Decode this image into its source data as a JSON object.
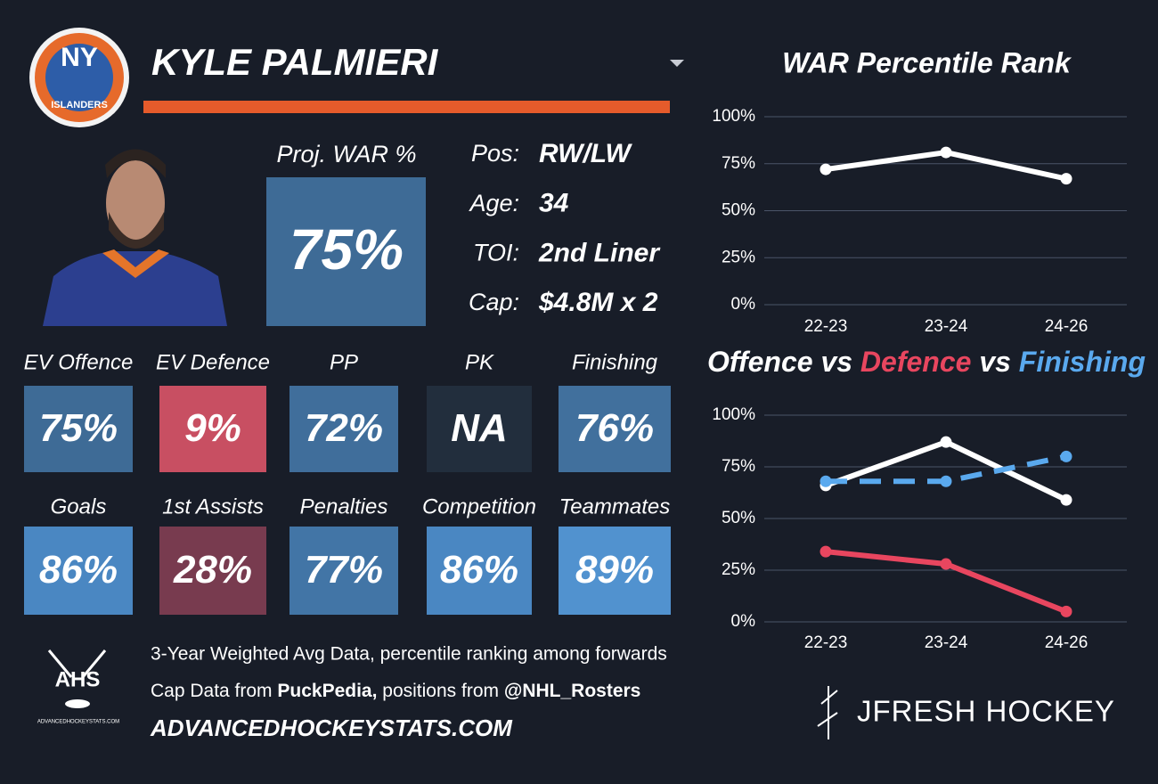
{
  "logo": {
    "top": "NY",
    "bottom": "ISLANDERS"
  },
  "player": {
    "name": "KYLE PALMIERI"
  },
  "proj_war": {
    "label": "Proj. WAR %",
    "value": "75%",
    "color": "#3e6b96"
  },
  "info": [
    {
      "label": "Pos:",
      "value": "RW/LW"
    },
    {
      "label": "Age:",
      "value": 34
    },
    {
      "label": "TOI:",
      "value": "2nd Liner"
    },
    {
      "label": "Cap:",
      "value": "$4.8M x 2"
    }
  ],
  "tiles": [
    [
      {
        "label": "EV Offence",
        "value": "75%",
        "color": "#3e6b96"
      },
      {
        "label": "EV Defence",
        "value": "9%",
        "color": "#c84f62"
      },
      {
        "label": "PP",
        "value": "72%",
        "color": "#406e9b"
      },
      {
        "label": "PK",
        "value": "NA",
        "color": "#222e3d"
      },
      {
        "label": "Finishing",
        "value": "76%",
        "color": "#41709d"
      }
    ],
    [
      {
        "label": "Goals",
        "value": "86%",
        "color": "#4a87c2"
      },
      {
        "label": "1st Assists",
        "value": "28%",
        "color": "#783b4f"
      },
      {
        "label": "Penalties",
        "value": "77%",
        "color": "#4275a6"
      },
      {
        "label": "Competition",
        "value": "86%",
        "color": "#4a87c2"
      },
      {
        "label": "Teammates",
        "value": "89%",
        "color": "#5192cf"
      }
    ]
  ],
  "footer": {
    "ahs_logo": "AHS",
    "ahs_logo_sub": "ADVANCEDHOCKEYSTATS.COM",
    "line1": "3-Year Weighted Avg Data, percentile ranking among forwards",
    "line2": [
      "Cap Data from ",
      "PuckPedia,",
      " positions from ",
      "@NHL_Rosters"
    ],
    "site": "ADVANCEDHOCKEYSTATS.COM",
    "brand": "JFRESH HOCKEY"
  },
  "chart_data": [
    {
      "type": "line",
      "title": "WAR Percentile Rank",
      "categories": [
        "22-23",
        "23-24",
        "24-26"
      ],
      "series": [
        {
          "name": "WAR",
          "color": "#ffffff",
          "values": [
            72,
            81,
            67
          ]
        }
      ],
      "ylim": [
        0,
        100
      ],
      "yticks": [
        {
          "value": 0,
          "label": "0%"
        },
        {
          "value": 25,
          "label": "25%"
        },
        {
          "value": 50,
          "label": "50%"
        },
        {
          "value": 75,
          "label": "75%"
        },
        {
          "value": 100,
          "label": "100%"
        }
      ],
      "grid": true
    },
    {
      "type": "line",
      "title_joiner": "vs",
      "categories": [
        "22-23",
        "23-24",
        "24-26"
      ],
      "series": [
        {
          "name": "Offence",
          "color": "#ffffff",
          "values": [
            66,
            87,
            59
          ]
        },
        {
          "name": "Defence",
          "color": "#e8465f",
          "values": [
            34,
            28,
            5
          ]
        },
        {
          "name": "Finishing",
          "color": "#5aa9ee",
          "values": [
            68,
            68,
            80
          ],
          "dashed": true
        }
      ],
      "ylim": [
        0,
        100
      ],
      "yticks": [
        {
          "value": 0,
          "label": "0%"
        },
        {
          "value": 25,
          "label": "25%"
        },
        {
          "value": 50,
          "label": "50%"
        },
        {
          "value": 75,
          "label": "75%"
        },
        {
          "value": 100,
          "label": "100%"
        }
      ],
      "grid": true
    }
  ]
}
